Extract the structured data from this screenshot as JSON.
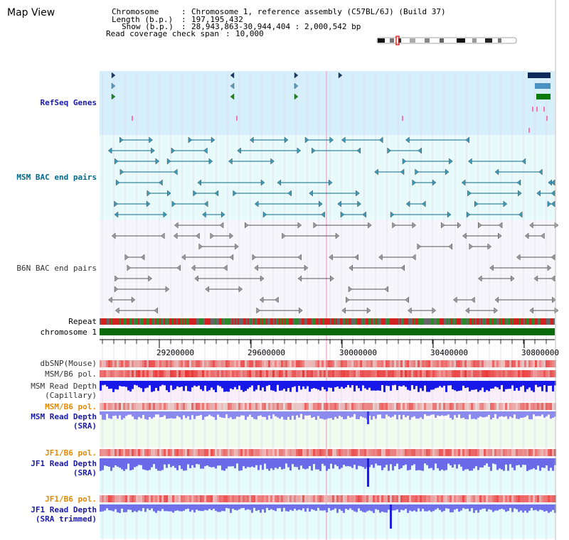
{
  "title": "Map View",
  "header": {
    "chromosome_label": "Chromosome",
    "chromosome_value": "Chromosome 1, reference assembly (C57BL/6J) (Build 37)",
    "length_label": "Length (b.p.)",
    "length_value": "197,195,432",
    "show_label": "Show (b.p.)",
    "show_value": "28,943,863-30,944,404 : 2,000,542 bp",
    "coverage_label": "Read coverage check span",
    "coverage_value": "10,000"
  },
  "tracks": {
    "refseq": "RefSeq Genes",
    "msm_bac": "MSM BAC end pairs",
    "b6n_bac": "B6N BAC end pairs",
    "repeat": "Repeat",
    "chromosome": "chromosome 1",
    "dbsnp": "dbSNP(Mouse)",
    "msm_b6_pol": "MSM/B6 pol.",
    "msm_depth_cap_1": "MSM Read Depth",
    "msm_depth_cap_2": "(Capillary)",
    "msm_b6_pol_2": "MSM/B6 pol.",
    "msm_depth_sra_1": "MSM Read Depth",
    "msm_depth_sra_2": "(SRA)",
    "jf1_b6_pol": "JF1/B6 pol.",
    "jf1_depth_sra_1": "JF1 Read Depth",
    "jf1_depth_sra_2": "(SRA)",
    "jf1_b6_pol_2": "JF1/B6 pol.",
    "jf1_depth_trim_1": "JF1 Read Depth",
    "jf1_depth_trim_2": "(SRA trimmed)"
  },
  "axis": {
    "ticks": [
      "29200000",
      "29600000",
      "30000000",
      "30400000",
      "30800000"
    ]
  },
  "colors": {
    "refseq_bg": "#d7effb",
    "msm_bac_bg": "#e8fafa",
    "chromosome_bar": "#0a6b0a",
    "depth_blue": "#1414e6",
    "depth_light": "#8a8af0",
    "pol_red": "#e02020"
  }
}
